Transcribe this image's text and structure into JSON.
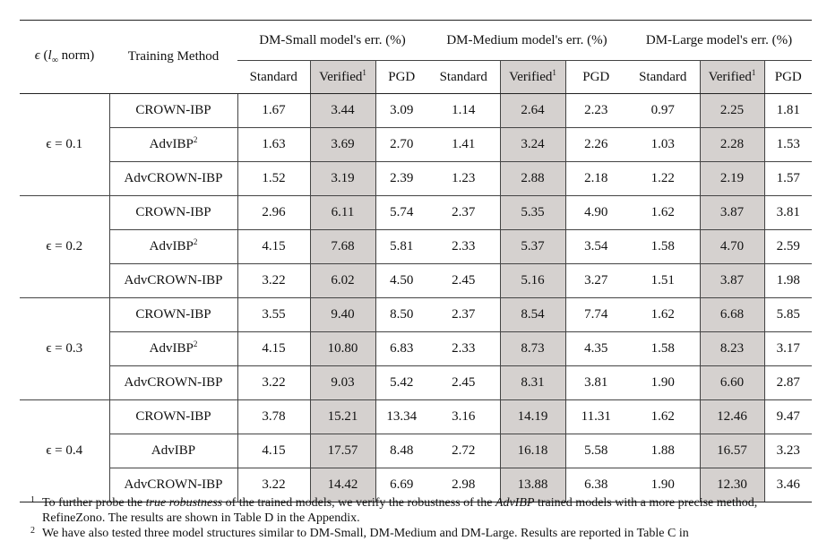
{
  "headers": {
    "epsilon": "ϵ (l∞ norm)",
    "epsilon_sym": "ϵ",
    "epsilon_open": " (",
    "epsilon_l": "l",
    "epsilon_sub": "∞",
    "epsilon_close": " norm)",
    "method": "Training Method",
    "groups": [
      "DM-Small model's err. (%)",
      "DM-Medium model's err. (%)",
      "DM-Large model's err. (%)"
    ],
    "sub_standard": "Standard",
    "sub_verified": "Verified",
    "sub_verified_mark": "1",
    "sub_pgd": "PGD"
  },
  "blocks": [
    {
      "epsilon": "ϵ = 0.1",
      "rows": [
        {
          "method": "CROWN-IBP",
          "method_mark": "",
          "values": [
            "1.67",
            "3.44",
            "3.09",
            "1.14",
            "2.64",
            "2.23",
            "0.97",
            "2.25",
            "1.81"
          ]
        },
        {
          "method": "AdvIBP",
          "method_mark": "2",
          "values": [
            "1.63",
            "3.69",
            "2.70",
            "1.41",
            "3.24",
            "2.26",
            "1.03",
            "2.28",
            "1.53"
          ]
        },
        {
          "method": "AdvCROWN-IBP",
          "method_mark": "",
          "values": [
            "1.52",
            "3.19",
            "2.39",
            "1.23",
            "2.88",
            "2.18",
            "1.22",
            "2.19",
            "1.57"
          ]
        }
      ]
    },
    {
      "epsilon": "ϵ = 0.2",
      "rows": [
        {
          "method": "CROWN-IBP",
          "method_mark": "",
          "values": [
            "2.96",
            "6.11",
            "5.74",
            "2.37",
            "5.35",
            "4.90",
            "1.62",
            "3.87",
            "3.81"
          ]
        },
        {
          "method": "AdvIBP",
          "method_mark": "2",
          "values": [
            "4.15",
            "7.68",
            "5.81",
            "2.33",
            "5.37",
            "3.54",
            "1.58",
            "4.70",
            "2.59"
          ]
        },
        {
          "method": "AdvCROWN-IBP",
          "method_mark": "",
          "values": [
            "3.22",
            "6.02",
            "4.50",
            "2.45",
            "5.16",
            "3.27",
            "1.51",
            "3.87",
            "1.98"
          ]
        }
      ]
    },
    {
      "epsilon": "ϵ = 0.3",
      "rows": [
        {
          "method": "CROWN-IBP",
          "method_mark": "",
          "values": [
            "3.55",
            "9.40",
            "8.50",
            "2.37",
            "8.54",
            "7.74",
            "1.62",
            "6.68",
            "5.85"
          ]
        },
        {
          "method": "AdvIBP",
          "method_mark": "2",
          "values": [
            "4.15",
            "10.80",
            "6.83",
            "2.33",
            "8.73",
            "4.35",
            "1.58",
            "8.23",
            "3.17"
          ]
        },
        {
          "method": "AdvCROWN-IBP",
          "method_mark": "",
          "values": [
            "3.22",
            "9.03",
            "5.42",
            "2.45",
            "8.31",
            "3.81",
            "1.90",
            "6.60",
            "2.87"
          ]
        }
      ]
    },
    {
      "epsilon": "ϵ = 0.4",
      "rows": [
        {
          "method": "CROWN-IBP",
          "method_mark": "",
          "values": [
            "3.78",
            "15.21",
            "13.34",
            "3.16",
            "14.19",
            "11.31",
            "1.62",
            "12.46",
            "9.47"
          ]
        },
        {
          "method": "AdvIBP",
          "method_mark": "",
          "values": [
            "4.15",
            "17.57",
            "8.48",
            "2.72",
            "16.18",
            "5.58",
            "1.88",
            "16.57",
            "3.23"
          ]
        },
        {
          "method": "AdvCROWN-IBP",
          "method_mark": "",
          "values": [
            "3.22",
            "14.42",
            "6.69",
            "2.98",
            "13.88",
            "6.38",
            "1.90",
            "12.30",
            "3.46"
          ]
        }
      ]
    }
  ],
  "bold_cells": [
    [
      0,
      0,
      4
    ],
    [
      0,
      2,
      1
    ],
    [
      0,
      2,
      7
    ],
    [
      1,
      2,
      1
    ],
    [
      1,
      2,
      4
    ],
    [
      1,
      2,
      7
    ],
    [
      2,
      2,
      1
    ],
    [
      2,
      2,
      4
    ],
    [
      2,
      2,
      7
    ],
    [
      3,
      2,
      1
    ],
    [
      3,
      2,
      4
    ],
    [
      3,
      2,
      7
    ]
  ],
  "footnotes": [
    {
      "mark": "1",
      "text_1": "To further probe the ",
      "em_1": "true robustness",
      "text_2": " of the trained models, we verify the robustness of the ",
      "em_2": "AdvIBP",
      "text_3": " trained models with a more precise method, RefineZono. The results are shown in Table D in the Appendix."
    },
    {
      "mark": "2",
      "text": "We have also tested three model structures similar to DM-Small, DM-Medium and DM-Large. Results are reported in Table C in"
    }
  ]
}
